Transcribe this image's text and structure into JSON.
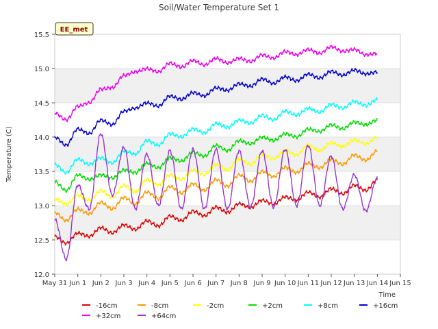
{
  "chart_data": {
    "type": "line",
    "title": "Soil/Water Temperature Set 1",
    "xlabel": "Time",
    "ylabel": "Temperature (C)",
    "badge": "EE_met",
    "ylim": [
      12.0,
      15.5
    ],
    "yticks": [
      12.0,
      12.5,
      13.0,
      13.5,
      14.0,
      14.5,
      15.0,
      15.5
    ],
    "ytick_labels": [
      "12.0",
      "12.5",
      "13.0",
      "13.5",
      "14.0",
      "14.5",
      "15.0",
      "15.5"
    ],
    "xlim": [
      0,
      15
    ],
    "xtick_labels": [
      "May 31",
      "Jun 1",
      "Jun 2",
      "Jun 3",
      "Jun 4",
      "Jun 5",
      "Jun 6",
      "Jun 7",
      "Jun 8",
      "Jun 9",
      "Jun 10",
      "Jun 11",
      "Jun 12",
      "Jun 13",
      "Jun 14",
      "Jun 15"
    ],
    "x": [
      0.0,
      0.5,
      1.0,
      1.5,
      2.0,
      2.5,
      3.0,
      3.5,
      4.0,
      4.5,
      5.0,
      5.5,
      6.0,
      6.5,
      7.0,
      7.5,
      8.0,
      8.5,
      9.0,
      9.5,
      10.0,
      10.5,
      11.0,
      11.5,
      12.0,
      12.5,
      13.0,
      13.5,
      14.0
    ],
    "series": [
      {
        "name": "-16cm",
        "color": "#dd0000",
        "values": [
          12.55,
          12.45,
          12.6,
          12.55,
          12.68,
          12.6,
          12.72,
          12.65,
          12.78,
          12.7,
          12.85,
          12.78,
          12.92,
          12.85,
          12.98,
          12.9,
          13.03,
          12.97,
          13.08,
          13.02,
          13.13,
          13.08,
          13.2,
          13.12,
          13.25,
          13.17,
          13.3,
          13.22,
          13.38
        ]
      },
      {
        "name": "-8cm",
        "color": "#ff9900",
        "values": [
          12.9,
          12.78,
          12.95,
          12.88,
          13.05,
          12.95,
          13.12,
          13.02,
          13.2,
          13.1,
          13.28,
          13.18,
          13.32,
          13.22,
          13.38,
          13.28,
          13.45,
          13.35,
          13.5,
          13.42,
          13.56,
          13.48,
          13.62,
          13.55,
          13.68,
          13.6,
          13.74,
          13.66,
          13.8
        ]
      },
      {
        "name": "-2cm",
        "color": "#ffff00",
        "values": [
          13.1,
          13.02,
          13.15,
          13.08,
          13.22,
          13.12,
          13.3,
          13.2,
          13.38,
          13.3,
          13.45,
          13.38,
          13.52,
          13.45,
          13.6,
          13.52,
          13.68,
          13.6,
          13.75,
          13.68,
          13.8,
          13.74,
          13.88,
          13.8,
          13.92,
          13.86,
          13.96,
          13.9,
          14.0
        ]
      },
      {
        "name": "+2cm",
        "color": "#00dd00",
        "values": [
          13.35,
          13.22,
          13.45,
          13.38,
          13.45,
          13.4,
          13.52,
          13.48,
          13.62,
          13.55,
          13.7,
          13.65,
          13.78,
          13.72,
          13.88,
          13.8,
          13.95,
          13.9,
          14.0,
          13.95,
          14.05,
          14.0,
          14.12,
          14.08,
          14.18,
          14.12,
          14.22,
          14.18,
          14.25
        ]
      },
      {
        "name": "+8cm",
        "color": "#00ffff",
        "values": [
          13.6,
          13.48,
          13.68,
          13.6,
          13.7,
          13.62,
          13.8,
          13.75,
          13.95,
          13.88,
          14.05,
          14.0,
          14.12,
          14.06,
          14.2,
          14.14,
          14.25,
          14.2,
          14.32,
          14.25,
          14.38,
          14.32,
          14.42,
          14.36,
          14.48,
          14.42,
          14.52,
          14.46,
          14.55
        ]
      },
      {
        "name": "+16cm",
        "color": "#0000cc",
        "values": [
          14.0,
          13.88,
          14.12,
          14.05,
          14.25,
          14.18,
          14.38,
          14.42,
          14.5,
          14.45,
          14.6,
          14.55,
          14.65,
          14.6,
          14.72,
          14.68,
          14.78,
          14.74,
          14.85,
          14.78,
          14.88,
          14.82,
          14.92,
          14.86,
          14.96,
          14.9,
          14.98,
          14.92,
          14.95
        ]
      },
      {
        "name": "+32cm",
        "color": "#ee00ee",
        "values": [
          14.35,
          14.25,
          14.45,
          14.5,
          14.7,
          14.72,
          14.9,
          14.95,
          15.0,
          14.95,
          15.08,
          15.02,
          15.12,
          15.05,
          15.15,
          15.08,
          15.15,
          15.1,
          15.2,
          15.15,
          15.25,
          15.2,
          15.28,
          15.22,
          15.32,
          15.25,
          15.28,
          15.2,
          15.22
        ]
      },
      {
        "name": "+64cm",
        "color": "#9933cc",
        "values": [
          12.8,
          12.22,
          13.3,
          12.95,
          14.05,
          13.15,
          13.85,
          12.95,
          13.75,
          13.0,
          13.8,
          12.95,
          13.82,
          12.95,
          13.82,
          12.95,
          13.8,
          12.98,
          13.8,
          12.98,
          13.82,
          13.0,
          13.88,
          13.0,
          13.72,
          12.95,
          13.45,
          12.92,
          13.4
        ]
      }
    ]
  }
}
